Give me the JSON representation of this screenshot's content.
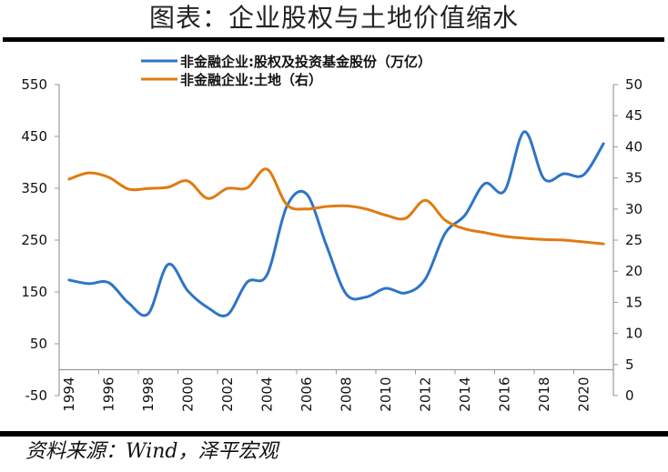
{
  "page": {
    "title": "图表：企业股权与土地价值缩水",
    "source": "资料来源：Wind，泽平宏观"
  },
  "chart_data": {
    "type": "line",
    "title": "图表：企业股权与土地价值缩水",
    "xlabel": "",
    "ylabel_left": "",
    "ylabel_right": "",
    "grid": false,
    "legend_position": "top-center",
    "x": [
      1994,
      1995,
      1996,
      1997,
      1998,
      1999,
      2000,
      2001,
      2002,
      2003,
      2004,
      2005,
      2006,
      2007,
      2008,
      2009,
      2010,
      2011,
      2012,
      2013,
      2014,
      2015,
      2016,
      2017,
      2018,
      2019,
      2020,
      2021
    ],
    "x_tick_labels": [
      "1994",
      "1996",
      "1998",
      "2000",
      "2002",
      "2004",
      "2006",
      "2008",
      "2010",
      "2012",
      "2014",
      "2016",
      "2018",
      "2020"
    ],
    "ylim_left": [
      -50,
      550
    ],
    "yticks_left": [
      -50,
      50,
      150,
      250,
      350,
      450,
      550
    ],
    "ylim_right": [
      0,
      50
    ],
    "yticks_right": [
      0,
      5,
      10,
      15,
      20,
      25,
      30,
      35,
      40,
      45,
      50
    ],
    "series": [
      {
        "name": "非金融企业:股权及投资基金股份（万亿）",
        "axis": "left",
        "color": "#2E75C6",
        "values": [
          173,
          166,
          168,
          129,
          108,
          203,
          152,
          120,
          106,
          169,
          183,
          315,
          339,
          240,
          146,
          140,
          157,
          148,
          175,
          263,
          298,
          359,
          345,
          459,
          368,
          378,
          376,
          436
        ]
      },
      {
        "name": "非金融企业:土地（右）",
        "axis": "right",
        "color": "#E07B12",
        "values": [
          34.8,
          35.8,
          35.1,
          33.2,
          33.3,
          33.5,
          34.5,
          31.7,
          33.3,
          33.4,
          36.4,
          30.7,
          30.0,
          30.4,
          30.5,
          30.0,
          29.0,
          28.5,
          31.4,
          28.2,
          26.8,
          26.2,
          25.6,
          25.3,
          25.1,
          25.0,
          24.7,
          24.4
        ]
      }
    ]
  }
}
